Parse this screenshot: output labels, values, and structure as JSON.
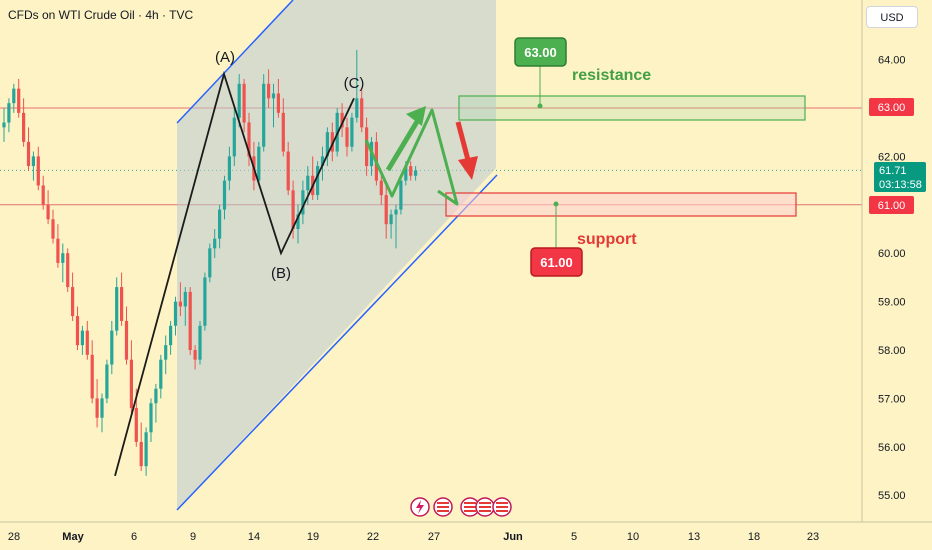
{
  "header": {
    "symbol_line": "CFDs on WTI Crude Oil · 4h · TVC"
  },
  "currency_button": "USD",
  "colors": {
    "background": "#fdf3c4",
    "up": "#26a69a",
    "down": "#ef5350",
    "resistance": "#43a047",
    "support": "#e53935",
    "trendline": "#2962ff",
    "channel_fill": "#b8c8d3"
  },
  "chart_data": {
    "type": "candlestick",
    "title": "CFDs on WTI Crude Oil · 4h · TVC",
    "y_axis": {
      "ticks": [
        "55.00",
        "56.00",
        "57.00",
        "58.00",
        "59.00",
        "60.00",
        "61.00",
        "62.00",
        "63.00",
        "64.00"
      ],
      "range": [
        54.6,
        65.0
      ]
    },
    "x_axis": {
      "ticks": [
        "28",
        "May",
        "6",
        "9",
        "14",
        "19",
        "22",
        "27",
        "Jun",
        "5",
        "10",
        "13",
        "18",
        "23"
      ]
    },
    "price_badges": [
      {
        "name": "resistance",
        "value": "63.00",
        "color": "#f23645"
      },
      {
        "name": "last",
        "value": "61.71",
        "countdown": "03:13:58",
        "color": "#089981"
      },
      {
        "name": "support",
        "value": "61.00",
        "color": "#f23645"
      }
    ],
    "wave_labels": [
      "(A)",
      "(B)",
      "(C)"
    ],
    "wave_points": [
      {
        "label": "start",
        "value": 55.4
      },
      {
        "label": "(A)",
        "value": 63.7
      },
      {
        "label": "(B)",
        "value": 60.0
      },
      {
        "label": "(C)",
        "value": 63.2
      }
    ],
    "forecast_path": [
      61.3,
      63.0,
      61.0
    ],
    "down_arrow_target": 61.1,
    "resistance": {
      "label": "resistance",
      "badge": "63.00",
      "zone": [
        62.8,
        63.3
      ]
    },
    "support": {
      "label": "support",
      "badge": "61.00",
      "zone": [
        60.7,
        61.2
      ]
    },
    "channel": {
      "upper_from": 62.6,
      "lower_from": 54.6
    },
    "candles": [
      [
        62.6,
        63.0,
        62.3,
        62.7
      ],
      [
        62.7,
        63.2,
        62.5,
        63.1
      ],
      [
        63.1,
        63.5,
        62.9,
        63.4
      ],
      [
        63.4,
        63.6,
        62.8,
        62.9
      ],
      [
        62.9,
        63.2,
        62.2,
        62.3
      ],
      [
        62.3,
        62.6,
        61.7,
        61.8
      ],
      [
        61.8,
        62.1,
        61.5,
        62.0
      ],
      [
        62.0,
        62.2,
        61.3,
        61.4
      ],
      [
        61.4,
        61.6,
        60.9,
        61.0
      ],
      [
        61.0,
        61.3,
        60.6,
        60.7
      ],
      [
        60.7,
        60.9,
        60.2,
        60.3
      ],
      [
        60.3,
        60.6,
        59.7,
        59.8
      ],
      [
        59.8,
        60.2,
        59.4,
        60.0
      ],
      [
        60.0,
        60.1,
        59.2,
        59.3
      ],
      [
        59.3,
        59.6,
        58.6,
        58.7
      ],
      [
        58.7,
        58.9,
        58.0,
        58.1
      ],
      [
        58.1,
        58.5,
        57.9,
        58.4
      ],
      [
        58.4,
        58.6,
        57.8,
        57.9
      ],
      [
        57.9,
        58.2,
        56.9,
        57.0
      ],
      [
        57.0,
        57.4,
        56.4,
        56.6
      ],
      [
        56.6,
        57.1,
        56.3,
        57.0
      ],
      [
        57.0,
        57.8,
        56.9,
        57.7
      ],
      [
        57.7,
        58.6,
        57.5,
        58.4
      ],
      [
        58.4,
        59.5,
        58.3,
        59.3
      ],
      [
        59.3,
        59.6,
        58.5,
        58.6
      ],
      [
        58.6,
        58.9,
        57.7,
        57.8
      ],
      [
        57.8,
        58.2,
        56.7,
        56.8
      ],
      [
        56.8,
        57.2,
        56.0,
        56.1
      ],
      [
        56.1,
        56.5,
        55.5,
        55.6
      ],
      [
        55.6,
        56.4,
        55.4,
        56.3
      ],
      [
        56.3,
        57.0,
        56.1,
        56.9
      ],
      [
        56.9,
        57.3,
        56.5,
        57.2
      ],
      [
        57.2,
        57.9,
        57.0,
        57.8
      ],
      [
        57.8,
        58.3,
        57.5,
        58.1
      ],
      [
        58.1,
        58.6,
        57.9,
        58.5
      ],
      [
        58.5,
        59.1,
        58.3,
        59.0
      ],
      [
        59.0,
        59.4,
        58.7,
        58.9
      ],
      [
        58.9,
        59.3,
        58.5,
        59.2
      ],
      [
        59.2,
        59.3,
        57.9,
        58.0
      ],
      [
        58.0,
        58.1,
        57.6,
        57.8
      ],
      [
        57.8,
        58.6,
        57.7,
        58.5
      ],
      [
        58.5,
        59.6,
        58.4,
        59.5
      ],
      [
        59.5,
        60.2,
        59.4,
        60.1
      ],
      [
        60.1,
        60.5,
        59.9,
        60.3
      ],
      [
        60.3,
        61.0,
        60.1,
        60.9
      ],
      [
        60.9,
        61.6,
        60.7,
        61.5
      ],
      [
        61.5,
        62.2,
        61.3,
        62.0
      ],
      [
        62.0,
        63.0,
        61.8,
        62.8
      ],
      [
        62.8,
        63.7,
        62.6,
        63.5
      ],
      [
        63.5,
        63.6,
        62.5,
        62.7
      ],
      [
        62.7,
        62.9,
        61.8,
        62.0
      ],
      [
        62.0,
        62.3,
        61.3,
        61.5
      ],
      [
        61.5,
        62.3,
        61.4,
        62.2
      ],
      [
        62.2,
        63.7,
        62.1,
        63.5
      ],
      [
        63.5,
        63.8,
        63.0,
        63.2
      ],
      [
        63.2,
        63.5,
        62.6,
        63.3
      ],
      [
        63.3,
        63.6,
        62.8,
        62.9
      ],
      [
        62.9,
        63.2,
        62.0,
        62.1
      ],
      [
        62.1,
        62.3,
        61.2,
        61.3
      ],
      [
        61.3,
        61.5,
        60.3,
        60.5
      ],
      [
        60.5,
        61.0,
        60.2,
        60.8
      ],
      [
        60.8,
        61.5,
        60.6,
        61.3
      ],
      [
        61.3,
        61.8,
        61.0,
        61.6
      ],
      [
        61.6,
        62.0,
        61.1,
        61.2
      ],
      [
        61.2,
        61.9,
        61.1,
        61.8
      ],
      [
        61.8,
        62.2,
        61.5,
        62.0
      ],
      [
        62.0,
        62.6,
        61.8,
        62.5
      ],
      [
        62.5,
        62.7,
        61.9,
        62.1
      ],
      [
        62.1,
        63.0,
        62.0,
        62.9
      ],
      [
        62.9,
        63.1,
        62.4,
        62.6
      ],
      [
        62.6,
        62.8,
        62.0,
        62.2
      ],
      [
        62.2,
        62.9,
        62.1,
        62.8
      ],
      [
        62.8,
        64.2,
        62.7,
        63.2
      ],
      [
        63.2,
        63.4,
        62.5,
        62.6
      ],
      [
        62.6,
        62.8,
        61.6,
        61.8
      ],
      [
        61.8,
        62.4,
        61.6,
        62.3
      ],
      [
        62.3,
        62.5,
        61.4,
        61.5
      ],
      [
        61.5,
        61.7,
        61.0,
        61.2
      ],
      [
        61.2,
        61.4,
        60.3,
        60.6
      ],
      [
        60.6,
        60.9,
        60.3,
        60.8
      ],
      [
        60.8,
        61.0,
        60.1,
        60.9
      ],
      [
        60.9,
        61.6,
        60.8,
        61.5
      ],
      [
        61.5,
        61.9,
        61.4,
        61.8
      ],
      [
        61.8,
        61.9,
        61.5,
        61.6
      ],
      [
        61.6,
        61.8,
        61.5,
        61.71
      ]
    ]
  }
}
